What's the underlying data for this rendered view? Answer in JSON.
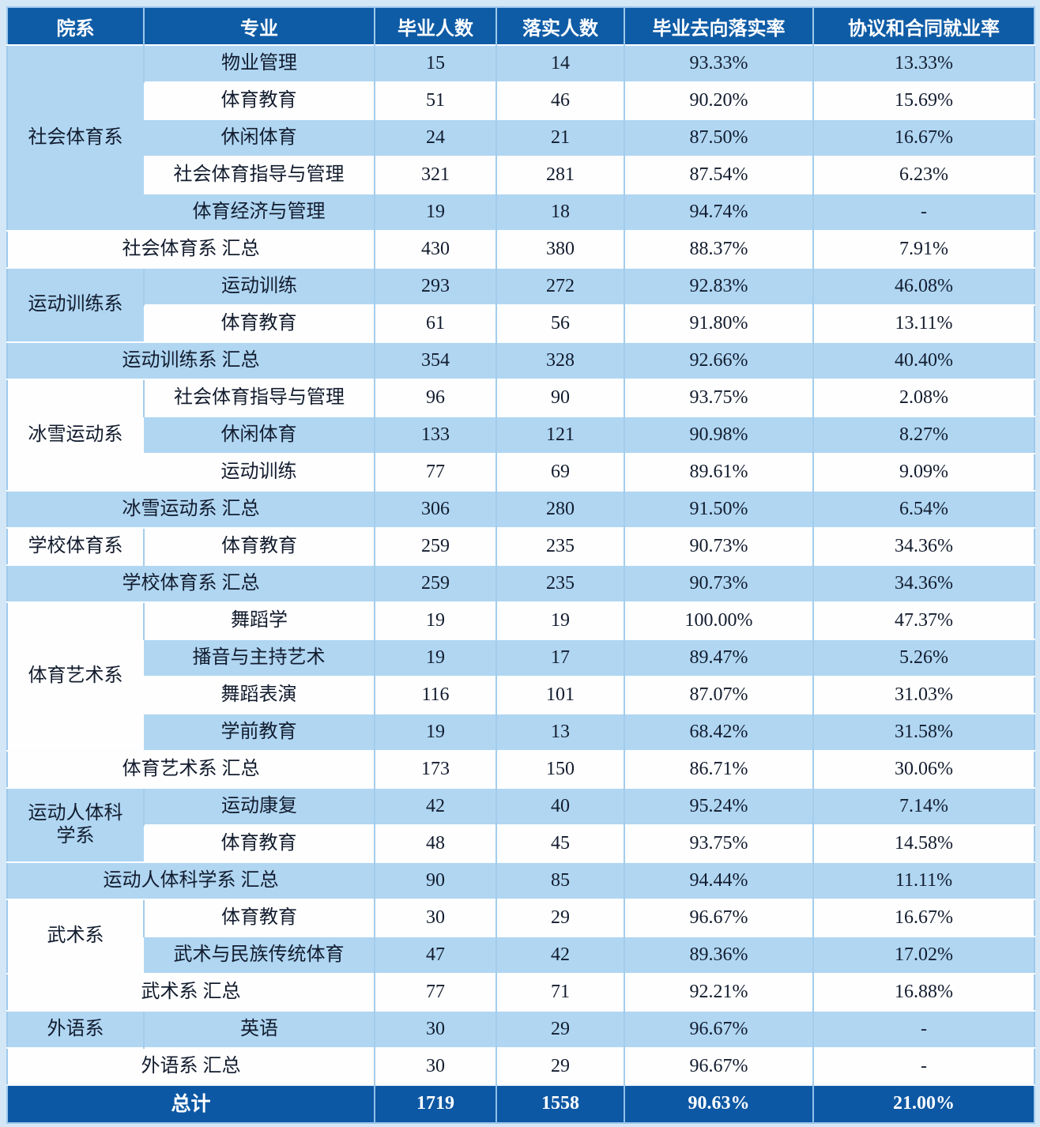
{
  "chart_data": {
    "type": "table",
    "headers": [
      "院系",
      "专业",
      "毕业人数",
      "落实人数",
      "毕业去向落实率",
      "协议和合同就业率"
    ],
    "groups": [
      {
        "department": "社会体育系",
        "rows": [
          {
            "major": "物业管理",
            "graduates": "15",
            "employed": "14",
            "rate": "93.33%",
            "contract_rate": "13.33%"
          },
          {
            "major": "体育教育",
            "graduates": "51",
            "employed": "46",
            "rate": "90.20%",
            "contract_rate": "15.69%"
          },
          {
            "major": "休闲体育",
            "graduates": "24",
            "employed": "21",
            "rate": "87.50%",
            "contract_rate": "16.67%"
          },
          {
            "major": "社会体育指导与管理",
            "graduates": "321",
            "employed": "281",
            "rate": "87.54%",
            "contract_rate": "6.23%"
          },
          {
            "major": "体育经济与管理",
            "graduates": "19",
            "employed": "18",
            "rate": "94.74%",
            "contract_rate": "-"
          }
        ],
        "summary": {
          "label": "社会体育系 汇总",
          "graduates": "430",
          "employed": "380",
          "rate": "88.37%",
          "contract_rate": "7.91%"
        }
      },
      {
        "department": "运动训练系",
        "rows": [
          {
            "major": "运动训练",
            "graduates": "293",
            "employed": "272",
            "rate": "92.83%",
            "contract_rate": "46.08%"
          },
          {
            "major": "体育教育",
            "graduates": "61",
            "employed": "56",
            "rate": "91.80%",
            "contract_rate": "13.11%"
          }
        ],
        "summary": {
          "label": "运动训练系 汇总",
          "graduates": "354",
          "employed": "328",
          "rate": "92.66%",
          "contract_rate": "40.40%"
        }
      },
      {
        "department": "冰雪运动系",
        "rows": [
          {
            "major": "社会体育指导与管理",
            "graduates": "96",
            "employed": "90",
            "rate": "93.75%",
            "contract_rate": "2.08%"
          },
          {
            "major": "休闲体育",
            "graduates": "133",
            "employed": "121",
            "rate": "90.98%",
            "contract_rate": "8.27%"
          },
          {
            "major": "运动训练",
            "graduates": "77",
            "employed": "69",
            "rate": "89.61%",
            "contract_rate": "9.09%"
          }
        ],
        "summary": {
          "label": "冰雪运动系 汇总",
          "graduates": "306",
          "employed": "280",
          "rate": "91.50%",
          "contract_rate": "6.54%"
        }
      },
      {
        "department": "学校体育系",
        "rows": [
          {
            "major": "体育教育",
            "graduates": "259",
            "employed": "235",
            "rate": "90.73%",
            "contract_rate": "34.36%"
          }
        ],
        "summary": {
          "label": "学校体育系 汇总",
          "graduates": "259",
          "employed": "235",
          "rate": "90.73%",
          "contract_rate": "34.36%"
        }
      },
      {
        "department": "体育艺术系",
        "rows": [
          {
            "major": "舞蹈学",
            "graduates": "19",
            "employed": "19",
            "rate": "100.00%",
            "contract_rate": "47.37%"
          },
          {
            "major": "播音与主持艺术",
            "graduates": "19",
            "employed": "17",
            "rate": "89.47%",
            "contract_rate": "5.26%"
          },
          {
            "major": "舞蹈表演",
            "graduates": "116",
            "employed": "101",
            "rate": "87.07%",
            "contract_rate": "31.03%"
          },
          {
            "major": "学前教育",
            "graduates": "19",
            "employed": "13",
            "rate": "68.42%",
            "contract_rate": "31.58%"
          }
        ],
        "summary": {
          "label": "体育艺术系 汇总",
          "graduates": "173",
          "employed": "150",
          "rate": "86.71%",
          "contract_rate": "30.06%"
        }
      },
      {
        "department": "运动人体科学系",
        "rows": [
          {
            "major": "运动康复",
            "graduates": "42",
            "employed": "40",
            "rate": "95.24%",
            "contract_rate": "7.14%"
          },
          {
            "major": "体育教育",
            "graduates": "48",
            "employed": "45",
            "rate": "93.75%",
            "contract_rate": "14.58%"
          }
        ],
        "summary": {
          "label": "运动人体科学系 汇总",
          "graduates": "90",
          "employed": "85",
          "rate": "94.44%",
          "contract_rate": "11.11%"
        }
      },
      {
        "department": "武术系",
        "rows": [
          {
            "major": "体育教育",
            "graduates": "30",
            "employed": "29",
            "rate": "96.67%",
            "contract_rate": "16.67%"
          },
          {
            "major": "武术与民族传统体育",
            "graduates": "47",
            "employed": "42",
            "rate": "89.36%",
            "contract_rate": "17.02%"
          }
        ],
        "summary": {
          "label": "武术系 汇总",
          "graduates": "77",
          "employed": "71",
          "rate": "92.21%",
          "contract_rate": "16.88%"
        }
      },
      {
        "department": "外语系",
        "rows": [
          {
            "major": "英语",
            "graduates": "30",
            "employed": "29",
            "rate": "96.67%",
            "contract_rate": "-"
          }
        ],
        "summary": {
          "label": "外语系 汇总",
          "graduates": "30",
          "employed": "29",
          "rate": "96.67%",
          "contract_rate": "-"
        }
      }
    ],
    "total": {
      "label": "总计",
      "graduates": "1719",
      "employed": "1558",
      "rate": "90.63%",
      "contract_rate": "21.00%"
    },
    "colors": {
      "header_bg": "#0f5ca6",
      "total_bg": "#0d58a4",
      "row_light": "#b0d6f2",
      "row_white": "#fefefe",
      "grid_line": "#a4cdec",
      "page_bg": "#d3e7f7",
      "header_text": "#ffffff",
      "body_text": "#121c2e"
    }
  }
}
